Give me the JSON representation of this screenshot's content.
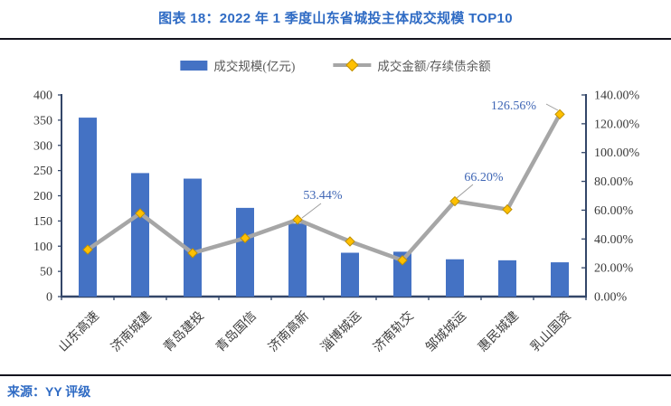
{
  "header": {
    "title": "图表 18：2022 年 1 季度山东省城投主体成交规模 TOP10"
  },
  "footer": {
    "source": "来源：YY 评级"
  },
  "colors": {
    "title_blue": "#2f6bc4",
    "rule": "#14141e",
    "bar": "#4472c4",
    "line": "#a6a6a6",
    "marker": "#ffc000",
    "marker_border": "#bf9000",
    "axis": "#334668",
    "tick_text": "#3a3a3a",
    "annotation": "#3f66b5"
  },
  "chart_data": {
    "type": "bar",
    "subtype": "combo-bar-line-dual-axis",
    "title": "图表 18：2022 年 1 季度山东省城投主体成交规模 TOP10",
    "categories": [
      "山东高速",
      "济南城建",
      "青岛建投",
      "青岛国信",
      "济南高新",
      "淄博城运",
      "济南轨交",
      "邹城城运",
      "惠民城建",
      "乳山国资"
    ],
    "series": [
      {
        "name": "成交规模(亿元)",
        "type": "bar",
        "axis": "left",
        "values": [
          355,
          245,
          234,
          176,
          145,
          87,
          89,
          74,
          72,
          68
        ]
      },
      {
        "name": "成交金额/存续债余额",
        "type": "line",
        "axis": "right",
        "values_pct": [
          32.6,
          57.8,
          30.2,
          40.6,
          53.44,
          38.3,
          25.2,
          66.2,
          60.5,
          126.56
        ]
      }
    ],
    "left_axis": {
      "min": 0,
      "max": 400,
      "step": 50,
      "tick_labels": [
        "0",
        "50",
        "100",
        "150",
        "200",
        "250",
        "300",
        "350",
        "400"
      ]
    },
    "right_axis": {
      "min": 0,
      "max": 140,
      "step": 20,
      "format": "percent2",
      "tick_labels": [
        "0.00%",
        "20.00%",
        "40.00%",
        "60.00%",
        "80.00%",
        "100.00%",
        "120.00%",
        "140.00%"
      ]
    },
    "annotations": [
      {
        "index": 4,
        "label": "53.44%"
      },
      {
        "index": 7,
        "label": "66.20%"
      },
      {
        "index": 9,
        "label": "126.56%"
      }
    ],
    "legend_position": "top-center",
    "gridlines": false
  }
}
